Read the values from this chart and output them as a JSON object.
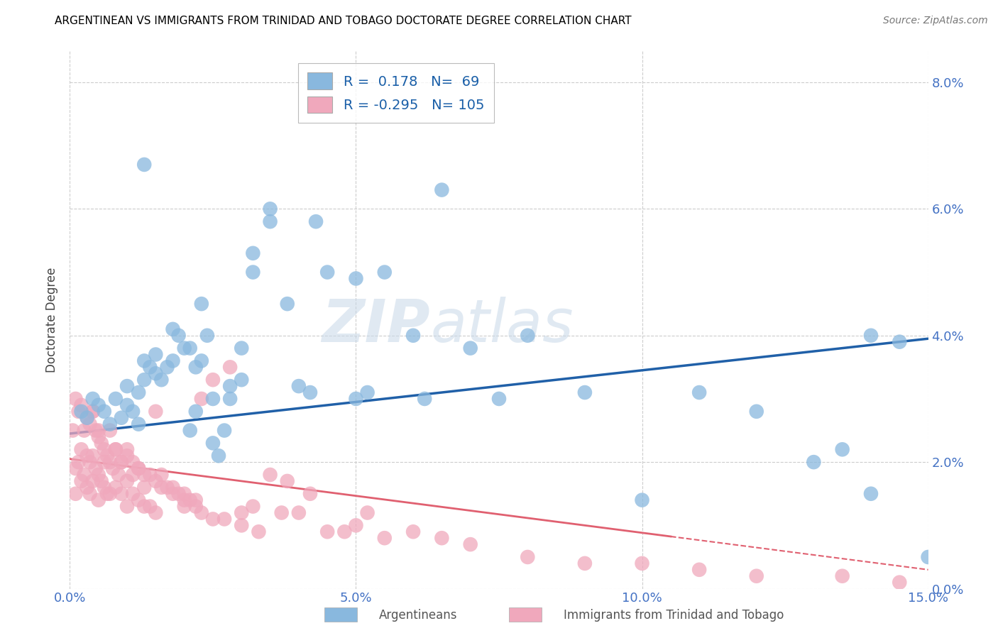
{
  "title": "ARGENTINEAN VS IMMIGRANTS FROM TRINIDAD AND TOBAGO DOCTORATE DEGREE CORRELATION CHART",
  "source": "Source: ZipAtlas.com",
  "xlabel_tick_vals": [
    0.0,
    5.0,
    10.0,
    15.0
  ],
  "ylabel": "Doctorate Degree",
  "ylabel_tick_vals": [
    0.0,
    2.0,
    4.0,
    6.0,
    8.0
  ],
  "xlim": [
    0.0,
    15.0
  ],
  "ylim": [
    0.0,
    8.5
  ],
  "blue_R": 0.178,
  "blue_N": 69,
  "pink_R": -0.295,
  "pink_N": 105,
  "blue_color": "#89b8de",
  "pink_color": "#f0a8bc",
  "blue_line_color": "#2060a8",
  "pink_line_color": "#e06070",
  "watermark_zip": "ZIP",
  "watermark_atlas": "atlas",
  "legend_label_blue": "Argentineans",
  "legend_label_pink": "Immigrants from Trinidad and Tobago",
  "blue_line_x0": 0.0,
  "blue_line_y0": 2.45,
  "blue_line_x1": 15.0,
  "blue_line_y1": 3.95,
  "pink_line_x0": 0.0,
  "pink_line_y0": 2.05,
  "pink_line_x1": 15.0,
  "pink_line_y1": 0.3,
  "pink_dash_start": 10.5,
  "blue_scatter_x": [
    0.2,
    0.3,
    0.4,
    0.5,
    0.6,
    0.7,
    0.8,
    0.9,
    1.0,
    1.0,
    1.1,
    1.2,
    1.3,
    1.3,
    1.4,
    1.5,
    1.5,
    1.6,
    1.7,
    1.8,
    1.9,
    2.0,
    2.1,
    2.2,
    2.3,
    2.4,
    2.5,
    2.6,
    2.7,
    2.8,
    3.0,
    3.2,
    3.5,
    3.8,
    4.0,
    4.2,
    4.5,
    5.0,
    5.5,
    6.0,
    6.5,
    7.0,
    7.5,
    8.0,
    9.0,
    10.0,
    11.0,
    12.0,
    13.0,
    13.5,
    14.0,
    14.0,
    14.5,
    15.0,
    1.2,
    1.3,
    2.1,
    2.5,
    3.5,
    4.3,
    5.2,
    6.2,
    5.0,
    3.0,
    2.2,
    1.8,
    2.8,
    2.3,
    3.2
  ],
  "blue_scatter_y": [
    2.8,
    2.7,
    3.0,
    2.9,
    2.8,
    2.6,
    3.0,
    2.7,
    2.9,
    3.2,
    2.8,
    3.1,
    3.3,
    3.6,
    3.5,
    3.4,
    3.7,
    3.3,
    3.5,
    3.6,
    4.0,
    3.8,
    2.5,
    2.8,
    3.6,
    4.0,
    2.3,
    2.1,
    2.5,
    3.0,
    3.3,
    5.0,
    5.8,
    4.5,
    3.2,
    3.1,
    5.0,
    3.0,
    5.0,
    4.0,
    6.3,
    3.8,
    3.0,
    4.0,
    3.1,
    1.4,
    3.1,
    2.8,
    2.0,
    2.2,
    1.5,
    4.0,
    3.9,
    0.5,
    2.6,
    6.7,
    3.8,
    3.0,
    6.0,
    5.8,
    3.1,
    3.0,
    4.9,
    3.8,
    3.5,
    4.1,
    3.2,
    4.5,
    5.3
  ],
  "pink_scatter_x": [
    0.05,
    0.1,
    0.1,
    0.1,
    0.15,
    0.15,
    0.2,
    0.2,
    0.2,
    0.25,
    0.25,
    0.3,
    0.3,
    0.3,
    0.35,
    0.35,
    0.35,
    0.4,
    0.4,
    0.4,
    0.45,
    0.45,
    0.5,
    0.5,
    0.5,
    0.55,
    0.55,
    0.6,
    0.6,
    0.65,
    0.65,
    0.7,
    0.7,
    0.75,
    0.8,
    0.8,
    0.85,
    0.9,
    0.9,
    1.0,
    1.0,
    1.0,
    1.1,
    1.1,
    1.2,
    1.2,
    1.3,
    1.3,
    1.4,
    1.4,
    1.5,
    1.5,
    1.6,
    1.7,
    1.8,
    1.9,
    2.0,
    2.0,
    2.1,
    2.2,
    2.3,
    2.5,
    2.7,
    3.0,
    3.3,
    3.5,
    4.0,
    4.5,
    5.0,
    5.5,
    6.0,
    6.5,
    7.0,
    8.0,
    9.0,
    10.0,
    11.0,
    12.0,
    13.5,
    14.5,
    0.8,
    1.5,
    2.5,
    3.8,
    1.2,
    0.6,
    0.7,
    1.8,
    2.3,
    3.2,
    4.8,
    1.0,
    0.4,
    2.0,
    5.2,
    1.6,
    3.0,
    1.3,
    2.8,
    4.2,
    0.5,
    2.2,
    0.9,
    3.7,
    1.1
  ],
  "pink_scatter_y": [
    2.5,
    3.0,
    1.9,
    1.5,
    2.8,
    2.0,
    2.9,
    2.2,
    1.7,
    2.5,
    1.8,
    2.7,
    2.1,
    1.6,
    2.6,
    2.0,
    1.5,
    2.8,
    2.1,
    1.7,
    2.5,
    1.9,
    2.4,
    1.8,
    1.4,
    2.3,
    1.7,
    2.2,
    1.6,
    2.1,
    1.5,
    2.0,
    1.5,
    1.9,
    2.2,
    1.6,
    1.8,
    2.0,
    1.5,
    2.1,
    1.7,
    1.3,
    2.0,
    1.5,
    1.9,
    1.4,
    1.8,
    1.3,
    1.8,
    1.3,
    1.7,
    1.2,
    1.6,
    1.6,
    1.5,
    1.5,
    1.4,
    1.3,
    1.4,
    1.3,
    1.2,
    1.1,
    1.1,
    1.0,
    0.9,
    1.8,
    1.2,
    0.9,
    1.0,
    0.8,
    0.9,
    0.8,
    0.7,
    0.5,
    0.4,
    0.4,
    0.3,
    0.2,
    0.2,
    0.1,
    2.2,
    2.8,
    3.3,
    1.7,
    1.9,
    2.0,
    2.5,
    1.6,
    3.0,
    1.3,
    0.9,
    2.2,
    2.8,
    1.5,
    1.2,
    1.8,
    1.2,
    1.6,
    3.5,
    1.5,
    2.5,
    1.4,
    2.0,
    1.2,
    1.8
  ]
}
